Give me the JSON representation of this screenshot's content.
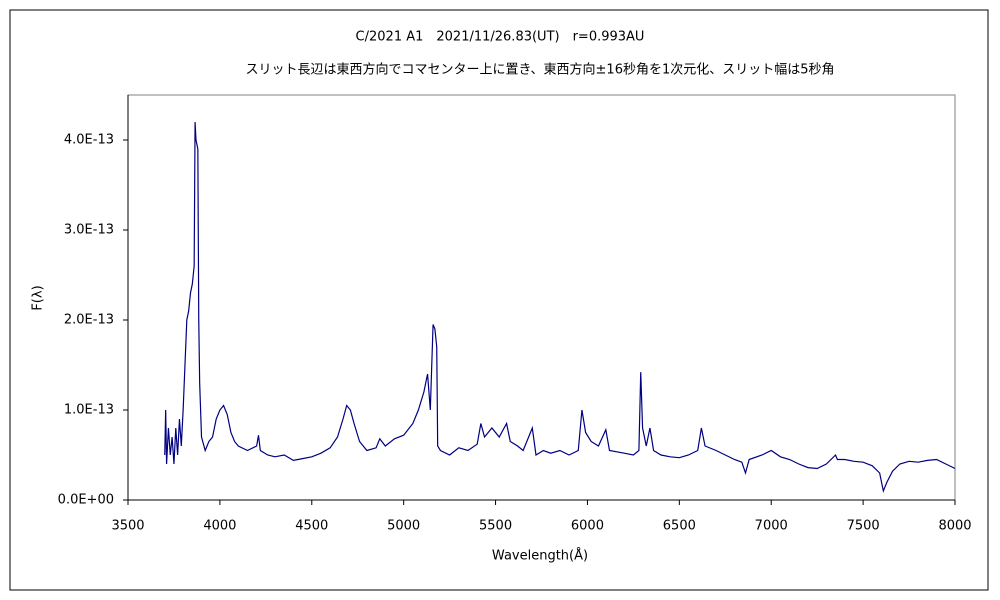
{
  "chart_data": {
    "type": "line",
    "title": "C/2021 A1　2021/11/26.83(UT)　r=0.993AU",
    "subtitle": "スリット長辺は東西方向でコマセンター上に置き、東西方向±16秒角を1次元化、スリット幅は5秒角",
    "x_label": "Wavelength(Å)",
    "y_label": "F(λ)",
    "color": "#000080",
    "xlim": [
      3500,
      8000
    ],
    "xticks": [
      3500,
      4000,
      4500,
      5000,
      5500,
      6000,
      6500,
      7000,
      7500,
      8000
    ],
    "ylim": [
      0,
      4.5e-13
    ],
    "yticks": [
      {
        "value": 0,
        "label": "0.0E+00"
      },
      {
        "value": 1e-13,
        "label": "1.0E-13"
      },
      {
        "value": 2e-13,
        "label": "2.0E-13"
      },
      {
        "value": 3e-13,
        "label": "3.0E-13"
      },
      {
        "value": 4e-13,
        "label": "4.0E-13"
      }
    ],
    "grid": false,
    "x": [
      3700,
      3705,
      3710,
      3720,
      3730,
      3740,
      3750,
      3760,
      3770,
      3780,
      3790,
      3800,
      3810,
      3820,
      3830,
      3840,
      3850,
      3860,
      3865,
      3870,
      3880,
      3885,
      3890,
      3900,
      3920,
      3940,
      3960,
      3980,
      4000,
      4020,
      4040,
      4060,
      4080,
      4100,
      4150,
      4200,
      4210,
      4220,
      4260,
      4300,
      4350,
      4400,
      4450,
      4500,
      4550,
      4600,
      4640,
      4670,
      4690,
      4710,
      4730,
      4760,
      4800,
      4850,
      4870,
      4900,
      4950,
      5000,
      5050,
      5080,
      5110,
      5130,
      5145,
      5160,
      5170,
      5180,
      5185,
      5200,
      5250,
      5300,
      5350,
      5400,
      5420,
      5440,
      5480,
      5520,
      5560,
      5580,
      5620,
      5650,
      5700,
      5720,
      5760,
      5800,
      5850,
      5900,
      5950,
      5970,
      5990,
      6020,
      6060,
      6100,
      6120,
      6200,
      6250,
      6280,
      6290,
      6300,
      6320,
      6340,
      6360,
      6400,
      6450,
      6500,
      6550,
      6600,
      6620,
      6640,
      6700,
      6750,
      6800,
      6840,
      6860,
      6880,
      6950,
      7000,
      7050,
      7100,
      7150,
      7200,
      7250,
      7300,
      7350,
      7360,
      7400,
      7450,
      7500,
      7550,
      7590,
      7610,
      7630,
      7660,
      7700,
      7750,
      7800,
      7850,
      7900,
      7950,
      8000
    ],
    "values": [
      5e-14,
      1e-13,
      4e-14,
      8e-14,
      5e-14,
      7e-14,
      4e-14,
      8e-14,
      5e-14,
      9e-14,
      6e-14,
      1e-13,
      1.5e-13,
      2e-13,
      2.1e-13,
      2.3e-13,
      2.4e-13,
      2.6e-13,
      4.2e-13,
      4e-13,
      3.9e-13,
      2e-13,
      1.3e-13,
      7e-14,
      5.5e-14,
      6.5e-14,
      7e-14,
      9e-14,
      1e-13,
      1.05e-13,
      9.5e-14,
      7.5e-14,
      6.5e-14,
      6e-14,
      5.5e-14,
      6e-14,
      7.2e-14,
      5.5e-14,
      5e-14,
      4.8e-14,
      5e-14,
      4.4e-14,
      4.6e-14,
      4.8e-14,
      5.2e-14,
      5.8e-14,
      7e-14,
      9e-14,
      1.05e-13,
      1e-13,
      8.5e-14,
      6.5e-14,
      5.5e-14,
      5.8e-14,
      6.8e-14,
      6e-14,
      6.8e-14,
      7.2e-14,
      8.5e-14,
      1e-13,
      1.2e-13,
      1.4e-13,
      1e-13,
      1.95e-13,
      1.9e-13,
      1.7e-13,
      6e-14,
      5.5e-14,
      5e-14,
      5.8e-14,
      5.5e-14,
      6.2e-14,
      8.5e-14,
      7e-14,
      8e-14,
      7e-14,
      8.5e-14,
      6.5e-14,
      6e-14,
      5.5e-14,
      8e-14,
      5e-14,
      5.5e-14,
      5.2e-14,
      5.5e-14,
      5e-14,
      5.5e-14,
      1e-13,
      7.5e-14,
      6.5e-14,
      6e-14,
      7.8e-14,
      5.5e-14,
      5.2e-14,
      5e-14,
      5.5e-14,
      1.42e-13,
      8e-14,
      6e-14,
      8e-14,
      5.5e-14,
      5e-14,
      4.8e-14,
      4.7e-14,
      5e-14,
      5.5e-14,
      8e-14,
      6e-14,
      5.5e-14,
      5e-14,
      4.5e-14,
      4.2e-14,
      3e-14,
      4.5e-14,
      5e-14,
      5.5e-14,
      4.8e-14,
      4.5e-14,
      4e-14,
      3.6e-14,
      3.5e-14,
      4e-14,
      5e-14,
      4.5e-14,
      4.5e-14,
      4.3e-14,
      4.2e-14,
      3.8e-14,
      3e-14,
      1e-14,
      2e-14,
      3.2e-14,
      4e-14,
      4.3e-14,
      4.2e-14,
      4.4e-14,
      4.5e-14,
      4e-14,
      3.5e-14
    ]
  }
}
